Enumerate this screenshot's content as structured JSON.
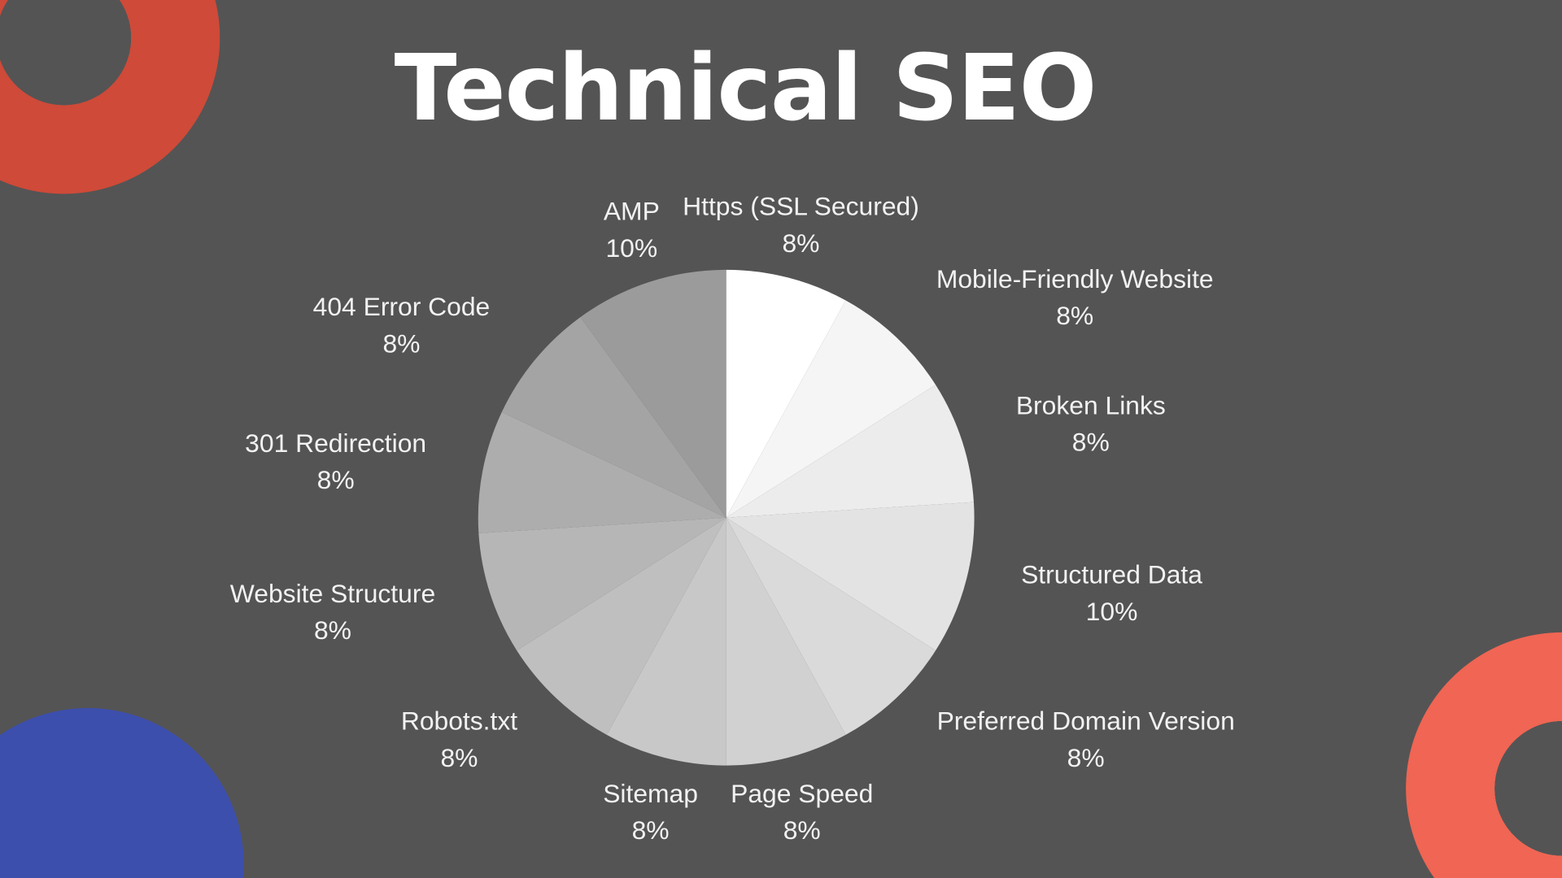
{
  "background_color": "#545454",
  "decorations": {
    "top_left_ring_color": "#cf4a38",
    "bottom_left_circle_color": "#3d4fad",
    "bottom_right_ring_color": "#f06553"
  },
  "chart_data": {
    "type": "pie",
    "title": "Technical SEO",
    "start_angle": "12 o'clock",
    "direction": "clockwise",
    "legend": "none (slice labels outside)",
    "slices": [
      {
        "label": "Https (SSL Secured)",
        "value": 8,
        "display": "8%",
        "color": "#ffffff"
      },
      {
        "label": "Mobile-Friendly Website",
        "value": 8,
        "display": "8%",
        "color": "#f5f5f5"
      },
      {
        "label": "Broken Links",
        "value": 8,
        "display": "8%",
        "color": "#ececec"
      },
      {
        "label": "Structured Data",
        "value": 10,
        "display": "10%",
        "color": "#e3e3e3"
      },
      {
        "label": "Preferred Domain Version",
        "value": 8,
        "display": "8%",
        "color": "#dadada"
      },
      {
        "label": "Page Speed",
        "value": 8,
        "display": "8%",
        "color": "#d1d1d1"
      },
      {
        "label": "Sitemap",
        "value": 8,
        "display": "8%",
        "color": "#c8c8c8"
      },
      {
        "label": "Robots.txt",
        "value": 8,
        "display": "8%",
        "color": "#bfbfbf"
      },
      {
        "label": "Website Structure",
        "value": 8,
        "display": "8%",
        "color": "#b6b6b6"
      },
      {
        "label": "301 Redirection",
        "value": 8,
        "display": "8%",
        "color": "#adadad"
      },
      {
        "label": "404 Error Code",
        "value": 8,
        "display": "8%",
        "color": "#a4a4a4"
      },
      {
        "label": "AMP",
        "value": 10,
        "display": "10%",
        "color": "#9b9b9b"
      }
    ]
  }
}
